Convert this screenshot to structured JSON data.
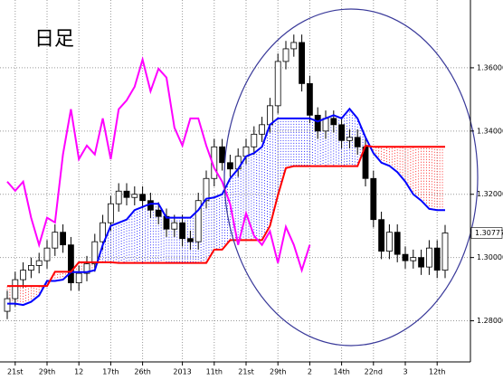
{
  "chart_data": {
    "type": "candlestick",
    "title": "日足",
    "categories": [
      null,
      "21st",
      null,
      null,
      null,
      "29th",
      null,
      null,
      null,
      "12",
      null,
      null,
      null,
      "17th",
      null,
      null,
      null,
      "26th",
      null,
      null,
      null,
      null,
      "2013",
      null,
      null,
      null,
      "11th",
      null,
      null,
      null,
      "21st",
      null,
      null,
      null,
      "29th",
      null,
      null,
      null,
      "2",
      null,
      null,
      null,
      "14th",
      null,
      null,
      null,
      "22nd",
      null,
      null,
      null,
      "3",
      null,
      null,
      null,
      "12th",
      null
    ],
    "open": [
      1.283,
      1.287,
      1.293,
      1.296,
      1.2975,
      1.299,
      1.303,
      1.308,
      1.304,
      1.292,
      1.295,
      1.298,
      1.305,
      1.311,
      1.317,
      1.321,
      1.319,
      1.32,
      1.318,
      1.315,
      1.313,
      1.309,
      1.311,
      1.306,
      1.305,
      1.318,
      1.325,
      1.335,
      1.33,
      1.328,
      1.332,
      1.335,
      1.339,
      1.342,
      1.348,
      1.362,
      1.366,
      1.368,
      1.355,
      1.345,
      1.34,
      1.344,
      1.342,
      1.337,
      1.338,
      1.335,
      1.325,
      1.312,
      1.302,
      1.308,
      1.301,
      1.299,
      1.3,
      1.297,
      1.303,
      1.296
    ],
    "high": [
      1.2895,
      1.2955,
      1.2985,
      1.3,
      1.3015,
      1.3055,
      1.3105,
      1.3105,
      1.3065,
      1.2975,
      1.3005,
      1.3075,
      1.3135,
      1.3195,
      1.3235,
      1.3235,
      1.3225,
      1.3225,
      1.3205,
      1.3175,
      1.3155,
      1.3135,
      1.3135,
      1.3085,
      1.3205,
      1.3275,
      1.3375,
      1.3375,
      1.3325,
      1.3345,
      1.3375,
      1.3415,
      1.3445,
      1.3505,
      1.3645,
      1.3685,
      1.3705,
      1.3705,
      1.3575,
      1.3475,
      1.3465,
      1.3465,
      1.3445,
      1.3405,
      1.3405,
      1.3375,
      1.3275,
      1.3145,
      1.3105,
      1.3105,
      1.3035,
      1.3025,
      1.3025,
      1.3055,
      1.3055,
      1.3103
    ],
    "low": [
      1.2805,
      1.2845,
      1.2905,
      1.2935,
      1.295,
      1.2965,
      1.3005,
      1.3015,
      1.2895,
      1.2895,
      1.2925,
      1.2955,
      1.3025,
      1.3085,
      1.3145,
      1.3165,
      1.3165,
      1.3155,
      1.3125,
      1.3105,
      1.3065,
      1.3065,
      1.3035,
      1.3025,
      1.3025,
      1.3155,
      1.3225,
      1.3275,
      1.3255,
      1.3255,
      1.3295,
      1.3325,
      1.3365,
      1.3395,
      1.3455,
      1.3595,
      1.3635,
      1.3525,
      1.3425,
      1.3375,
      1.3375,
      1.3395,
      1.3345,
      1.3345,
      1.3325,
      1.3225,
      1.3095,
      1.2995,
      1.2995,
      1.2985,
      1.2965,
      1.2965,
      1.2945,
      1.2945,
      1.2935,
      1.2935
    ],
    "close": [
      1.287,
      1.293,
      1.296,
      1.2975,
      1.299,
      1.303,
      1.308,
      1.304,
      1.292,
      1.295,
      1.298,
      1.305,
      1.311,
      1.317,
      1.321,
      1.319,
      1.32,
      1.318,
      1.315,
      1.313,
      1.309,
      1.311,
      1.306,
      1.305,
      1.318,
      1.325,
      1.335,
      1.33,
      1.328,
      1.332,
      1.335,
      1.339,
      1.342,
      1.348,
      1.362,
      1.366,
      1.368,
      1.355,
      1.345,
      1.34,
      1.344,
      1.342,
      1.337,
      1.338,
      1.335,
      1.325,
      1.312,
      1.302,
      1.308,
      1.301,
      1.299,
      1.3,
      1.297,
      1.303,
      1.296,
      1.30777
    ],
    "up_color": "#ffffff",
    "down_color": "#000000",
    "lines": [
      {
        "color": "#0000ff",
        "values": [
          1.2854,
          1.2854,
          1.285,
          1.286,
          1.288,
          1.2926,
          1.2926,
          1.293,
          1.2954,
          1.2954,
          1.2954,
          1.296,
          1.304,
          1.31,
          1.311,
          1.312,
          1.315,
          1.316,
          1.317,
          1.317,
          1.3126,
          1.3126,
          1.3126,
          1.3126,
          1.315,
          1.3186,
          1.319,
          1.32,
          1.325,
          1.328,
          1.332,
          1.333,
          1.335,
          1.342,
          1.344,
          1.344,
          1.344,
          1.344,
          1.344,
          1.343,
          1.344,
          1.345,
          1.344,
          1.347,
          1.344,
          1.338,
          1.333,
          1.33,
          1.329,
          1.327,
          1.324,
          1.32,
          1.318,
          1.3154,
          1.315,
          1.315
        ]
      },
      {
        "color": "#ff0000",
        "values": [
          1.291,
          1.291,
          1.291,
          1.291,
          1.291,
          1.291,
          1.2955,
          1.2955,
          1.2955,
          1.2985,
          1.2985,
          1.2985,
          1.2985,
          1.2985,
          1.2983,
          1.2983,
          1.2983,
          1.2983,
          1.2983,
          1.2983,
          1.2983,
          1.2983,
          1.2983,
          1.2983,
          1.2983,
          1.2983,
          1.3025,
          1.3025,
          1.3055,
          1.3055,
          1.3055,
          1.3055,
          1.3055,
          1.31,
          1.3197,
          1.3283,
          1.3289,
          1.3289,
          1.3289,
          1.3289,
          1.3289,
          1.3289,
          1.3289,
          1.3289,
          1.3289,
          1.3354,
          1.335,
          1.335,
          1.335,
          1.335,
          1.335,
          1.335,
          1.335,
          1.335,
          1.335,
          1.335
        ]
      },
      {
        "color": "#ff00ff",
        "values": [
          1.324,
          1.3211,
          1.324,
          1.3126,
          1.304,
          1.3126,
          1.3111,
          1.3326,
          1.3469,
          1.3311,
          1.3354,
          1.3326,
          1.344,
          1.3311,
          1.3469,
          1.3497,
          1.354,
          1.3626,
          1.3526,
          1.3597,
          1.3569,
          1.3411,
          1.3354,
          1.344,
          1.344,
          1.3354,
          1.3283,
          1.324,
          1.3169,
          1.304,
          1.314,
          1.3069,
          1.304,
          1.3083,
          1.2983,
          1.3097,
          1.304,
          1.296,
          1.304,
          null,
          null,
          null,
          null,
          null,
          null,
          null,
          null,
          null,
          null,
          null,
          null,
          null,
          null,
          null,
          null,
          null
        ]
      }
    ],
    "ylim": [
      1.267,
      1.38
    ],
    "yticks": [
      {
        "value": 1.28,
        "label": "1.28000"
      },
      {
        "value": 1.3,
        "label": "1.30000"
      },
      {
        "value": 1.32,
        "label": "1.32000"
      },
      {
        "value": 1.34,
        "label": "1.34000"
      },
      {
        "value": 1.36,
        "label": "1.36000"
      }
    ],
    "last_price": {
      "value": 1.30777,
      "label": "1.30777"
    },
    "grid": true
  }
}
